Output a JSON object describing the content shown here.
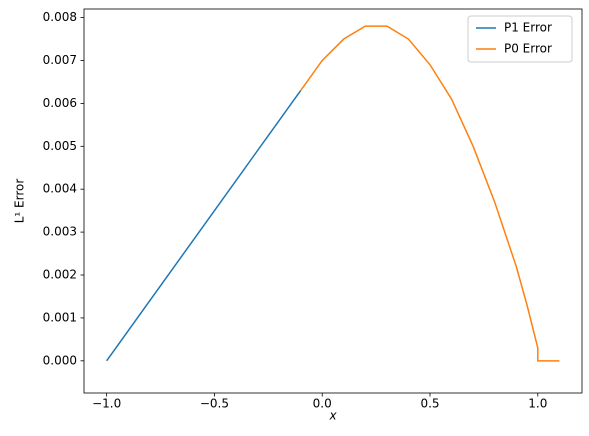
{
  "chart_data": {
    "type": "line",
    "xlabel": "x",
    "ylabel": "L¹ Error",
    "series": [
      {
        "name": "P1 Error",
        "color": "#1f77b4",
        "x": [
          -1.0,
          -0.5,
          -0.1
        ],
        "values": [
          0.0,
          0.0035,
          0.0063
        ]
      },
      {
        "name": "P0 Error",
        "color": "#ff7f0e",
        "x": [
          -0.1,
          0.0,
          0.1,
          0.2,
          0.25,
          0.3,
          0.4,
          0.5,
          0.6,
          0.7,
          0.8,
          0.9,
          0.95,
          1.0,
          1.0,
          1.1
        ],
        "values": [
          0.0063,
          0.007,
          0.0075,
          0.0078,
          0.0078,
          0.0078,
          0.0075,
          0.0069,
          0.0061,
          0.005,
          0.0037,
          0.0022,
          0.0013,
          0.0003,
          0.0,
          0.0
        ]
      }
    ],
    "xlim": [
      -1.105,
      1.205
    ],
    "ylim": [
      -0.00075,
      0.0082
    ],
    "xticks": [
      {
        "value": -1.0,
        "label": "−1.0"
      },
      {
        "value": -0.5,
        "label": "−0.5"
      },
      {
        "value": 0.0,
        "label": "0.0"
      },
      {
        "value": 0.5,
        "label": "0.5"
      },
      {
        "value": 1.0,
        "label": "1.0"
      }
    ],
    "yticks": [
      {
        "value": 0.0,
        "label": "0.000"
      },
      {
        "value": 0.001,
        "label": "0.001"
      },
      {
        "value": 0.002,
        "label": "0.002"
      },
      {
        "value": 0.003,
        "label": "0.003"
      },
      {
        "value": 0.004,
        "label": "0.004"
      },
      {
        "value": 0.005,
        "label": "0.005"
      },
      {
        "value": 0.006,
        "label": "0.006"
      },
      {
        "value": 0.007,
        "label": "0.007"
      },
      {
        "value": 0.008,
        "label": "0.008"
      }
    ],
    "legend": "upper right"
  }
}
